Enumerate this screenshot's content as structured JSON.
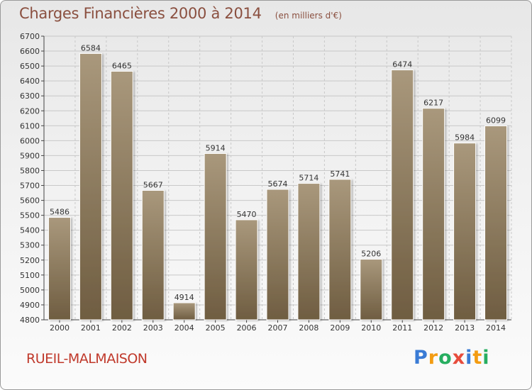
{
  "header": {
    "title": "Charges Financières 2000 à 2014",
    "subtitle": "(en milliers d'€)"
  },
  "footer": {
    "city": "RUEIL-MALMAISON",
    "logo": "Proxiti"
  },
  "colors": {
    "bar_top": "#a9987c",
    "bar_bottom": "#6f5d41",
    "grid": "#c8c8c8",
    "title": "#8a4f3f",
    "city": "#c0392b"
  },
  "chart_data": {
    "type": "bar",
    "title": "Charges Financières 2000 à 2014",
    "subtitle": "(en milliers d'€)",
    "categories": [
      "2000",
      "2001",
      "2002",
      "2003",
      "2004",
      "2005",
      "2006",
      "2007",
      "2008",
      "2009",
      "2010",
      "2011",
      "2012",
      "2013",
      "2014"
    ],
    "values": [
      5486,
      6584,
      6465,
      5667,
      4914,
      5914,
      5470,
      5674,
      5714,
      5741,
      5206,
      6474,
      6217,
      5984,
      6099
    ],
    "ylim": [
      4800,
      6700
    ],
    "ytick_step": 100,
    "grid": true,
    "xlabel": "",
    "ylabel": ""
  }
}
